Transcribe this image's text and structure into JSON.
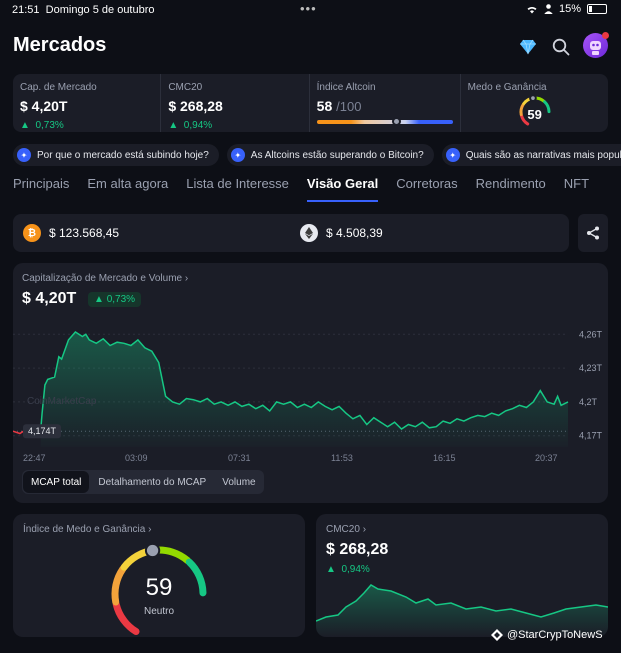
{
  "status_bar": {
    "time": "21:51",
    "date": "Domingo 5 de outubro",
    "battery": "15%"
  },
  "header": {
    "title": "Mercados"
  },
  "stats": {
    "market_cap": {
      "label": "Cap. de Mercado",
      "value": "$ 4,20T",
      "change": "0,73%"
    },
    "cmc20": {
      "label": "CMC20",
      "value": "$ 268,28",
      "change": "0,94%"
    },
    "altcoin": {
      "label": "Índice Altcoin",
      "value": "58",
      "max": "/100",
      "level": 58
    },
    "fear_greed": {
      "label": "Medo e Ganância",
      "value": "59",
      "level": 59
    }
  },
  "chips": [
    "Por que o mercado está subindo hoje?",
    "As Altcoins estão superando o Bitcoin?",
    "Quais são as narrativas mais populares?"
  ],
  "tabs": [
    "Principais",
    "Em alta agora",
    "Lista de Interesse",
    "Visão Geral",
    "Corretoras",
    "Rendimento",
    "NFT"
  ],
  "active_tab": "Visão Geral",
  "prices": {
    "btc": "$ 123.568,45",
    "eth": "$ 4.508,39"
  },
  "main_card": {
    "title": "Capitalização de Mercado e Volume",
    "value": "$ 4,20T",
    "change": "0,73%",
    "watermark": "CoinMarketCap",
    "low_label": "4,174T",
    "buttons": [
      "MCAP total",
      "Detalhamento do MCAP",
      "Volume"
    ]
  },
  "fear_card": {
    "title": "Índice de Medo e Ganância",
    "value": "59",
    "status": "Neutro",
    "level": 59
  },
  "cmc_card": {
    "title": "CMC20",
    "value": "$ 268,28",
    "change": "0,94%"
  },
  "credit": "@StarCrypToNewS",
  "colors": {
    "accent": "#3861fb",
    "up": "#16c784",
    "down": "#ea3943"
  },
  "chart_data": {
    "type": "area",
    "x_ticks": [
      "22:47",
      "03:09",
      "07:31",
      "11:53",
      "16:15",
      "20:37"
    ],
    "y_ticks": [
      "4,26T",
      "4,23T",
      "4,2T",
      "4,17T"
    ],
    "ylim": [
      4.16,
      4.27
    ],
    "unit": "T",
    "x": [
      0,
      1,
      2,
      3,
      4,
      4.2,
      4.6,
      5,
      6,
      6.6,
      7,
      8,
      9,
      10,
      10.5,
      11,
      12,
      13,
      14,
      15,
      16,
      17,
      18,
      19,
      20,
      21,
      22,
      23,
      24,
      25,
      26,
      27,
      28,
      29,
      30,
      31,
      32,
      33,
      34,
      35,
      36,
      37,
      38,
      39,
      40,
      41,
      42,
      43,
      44,
      45,
      46,
      47,
      48,
      49,
      50,
      51,
      52,
      53,
      54,
      55,
      56,
      57,
      58,
      59,
      60,
      61,
      62,
      63,
      64,
      65,
      66,
      67,
      68,
      69,
      70,
      71,
      72,
      73,
      74,
      75,
      76,
      77,
      78,
      78.5,
      79,
      80
    ],
    "values": [
      4.174,
      4.172,
      4.176,
      4.174,
      4.176,
      4.19,
      4.215,
      4.22,
      4.222,
      4.24,
      4.238,
      4.255,
      4.262,
      4.258,
      4.26,
      4.255,
      4.252,
      4.256,
      4.25,
      4.253,
      4.252,
      4.25,
      4.255,
      4.248,
      4.245,
      4.235,
      4.205,
      4.2,
      4.198,
      4.203,
      4.202,
      4.2,
      4.203,
      4.198,
      4.2,
      4.197,
      4.2,
      4.196,
      4.198,
      4.194,
      4.197,
      4.192,
      4.2,
      4.198,
      4.2,
      4.195,
      4.198,
      4.195,
      4.2,
      4.196,
      4.193,
      4.196,
      4.19,
      4.185,
      4.188,
      4.18,
      4.186,
      4.182,
      4.178,
      4.182,
      4.176,
      4.18,
      4.178,
      4.182,
      4.177,
      4.178,
      4.183,
      4.181,
      4.185,
      4.183,
      4.186,
      4.188,
      4.187,
      4.19,
      4.188,
      4.192,
      4.194,
      4.197,
      4.195,
      4.2,
      4.21,
      4.2,
      4.198,
      4.205,
      4.197,
      4.2
    ]
  }
}
